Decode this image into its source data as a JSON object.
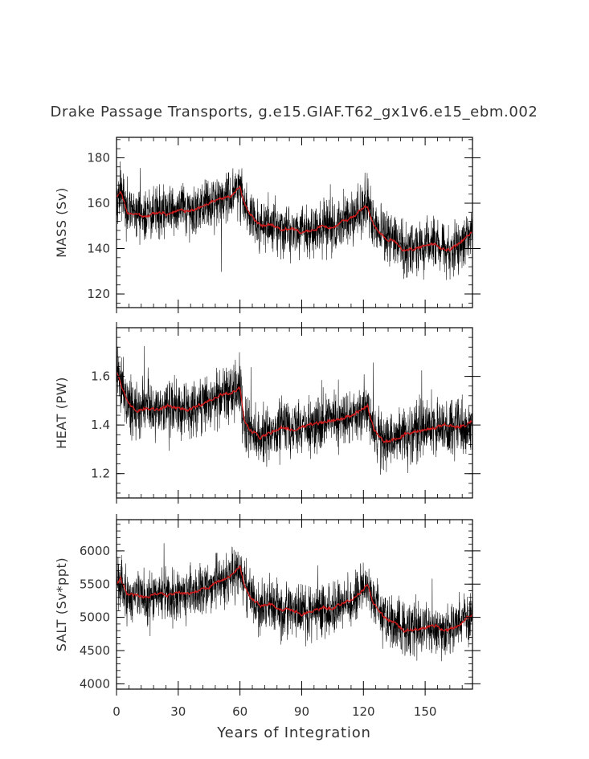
{
  "figure": {
    "title": "Drake Passage Transports, g.e15.GIAF.T62_gx1v6.e15_ebm.002",
    "xlabel": "Years of Integration",
    "x_ticks": [
      "0",
      "30",
      "60",
      "90",
      "120",
      "150"
    ],
    "colors": {
      "raw": "#000000",
      "smooth": "#d01c1c",
      "frame": "#000000"
    }
  },
  "chart_data": [
    {
      "type": "line",
      "panel": "mass",
      "ylabel": "MASS (Sv)",
      "xlim": [
        0,
        173
      ],
      "ylim": [
        114,
        189
      ],
      "y_ticks": [
        120,
        140,
        160,
        180
      ],
      "y_tick_labels": [
        "120",
        "140",
        "160",
        "180"
      ],
      "series": [
        {
          "style": "raw-monthly",
          "x": [
            0,
            2,
            5,
            10,
            15,
            20,
            25,
            30,
            35,
            40,
            45,
            50,
            55,
            58,
            60,
            62,
            65,
            70,
            75,
            80,
            85,
            90,
            95,
            100,
            105,
            110,
            115,
            120,
            122,
            125,
            130,
            135,
            140,
            145,
            150,
            155,
            160,
            165,
            170,
            173
          ],
          "y": [
            163,
            165,
            156,
            155,
            154,
            156,
            155,
            157,
            156,
            158,
            160,
            162,
            163,
            165,
            167,
            160,
            155,
            150,
            151,
            148,
            149,
            147,
            148,
            150,
            149,
            152,
            154,
            158,
            159,
            150,
            145,
            143,
            139,
            140,
            141,
            142,
            139,
            141,
            145,
            147
          ],
          "noise": 9
        },
        {
          "style": "smoothed",
          "x": [
            0,
            2,
            5,
            10,
            15,
            20,
            25,
            30,
            35,
            40,
            45,
            50,
            55,
            58,
            60,
            62,
            65,
            70,
            75,
            80,
            85,
            90,
            95,
            100,
            105,
            110,
            115,
            120,
            122,
            125,
            130,
            135,
            140,
            145,
            150,
            155,
            160,
            165,
            170,
            173
          ],
          "y": [
            163,
            165,
            156,
            155,
            154,
            156,
            155,
            157,
            156,
            158,
            160,
            162,
            163,
            165,
            167,
            160,
            155,
            150,
            151,
            148,
            149,
            147,
            148,
            150,
            149,
            152,
            154,
            158,
            159,
            150,
            145,
            143,
            139,
            140,
            141,
            142,
            139,
            141,
            145,
            147
          ],
          "noise": 1.2
        }
      ]
    },
    {
      "type": "line",
      "panel": "heat",
      "ylabel": "HEAT (PW)",
      "xlim": [
        0,
        173
      ],
      "ylim": [
        1.1,
        1.8
      ],
      "y_ticks": [
        1.2,
        1.4,
        1.6
      ],
      "y_tick_labels": [
        "1.2",
        "1.4",
        "1.6"
      ],
      "series": [
        {
          "style": "raw-monthly",
          "x": [
            0,
            1,
            3,
            6,
            10,
            15,
            20,
            25,
            30,
            35,
            40,
            45,
            50,
            55,
            58,
            60,
            62,
            65,
            70,
            75,
            80,
            85,
            90,
            95,
            100,
            105,
            110,
            115,
            120,
            122,
            125,
            130,
            135,
            140,
            145,
            150,
            155,
            160,
            165,
            170,
            173
          ],
          "y": [
            1.62,
            1.6,
            1.55,
            1.48,
            1.46,
            1.47,
            1.46,
            1.48,
            1.47,
            1.46,
            1.48,
            1.5,
            1.52,
            1.53,
            1.54,
            1.55,
            1.42,
            1.38,
            1.35,
            1.37,
            1.39,
            1.38,
            1.39,
            1.4,
            1.41,
            1.42,
            1.43,
            1.44,
            1.47,
            1.48,
            1.38,
            1.33,
            1.34,
            1.36,
            1.37,
            1.38,
            1.39,
            1.4,
            1.39,
            1.4,
            1.42
          ],
          "noise": 0.09
        },
        {
          "style": "smoothed",
          "x": [
            0,
            1,
            3,
            6,
            10,
            15,
            20,
            25,
            30,
            35,
            40,
            45,
            50,
            55,
            58,
            60,
            62,
            65,
            70,
            75,
            80,
            85,
            90,
            95,
            100,
            105,
            110,
            115,
            120,
            122,
            125,
            130,
            135,
            140,
            145,
            150,
            155,
            160,
            165,
            170,
            173
          ],
          "y": [
            1.62,
            1.6,
            1.55,
            1.48,
            1.46,
            1.47,
            1.46,
            1.48,
            1.47,
            1.46,
            1.48,
            1.5,
            1.52,
            1.53,
            1.54,
            1.55,
            1.42,
            1.38,
            1.35,
            1.37,
            1.39,
            1.38,
            1.39,
            1.4,
            1.41,
            1.42,
            1.43,
            1.44,
            1.47,
            1.48,
            1.38,
            1.33,
            1.34,
            1.36,
            1.37,
            1.38,
            1.39,
            1.4,
            1.39,
            1.4,
            1.42
          ],
          "noise": 0.012
        }
      ]
    },
    {
      "type": "line",
      "panel": "salt",
      "ylabel": "SALT (Sv*ppt)",
      "xlim": [
        0,
        173
      ],
      "ylim": [
        3920,
        6470
      ],
      "y_ticks": [
        4000,
        4500,
        5000,
        5500,
        6000
      ],
      "y_tick_labels": [
        "4000",
        "4500",
        "5000",
        "5500",
        "6000"
      ],
      "series": [
        {
          "style": "raw-monthly",
          "x": [
            0,
            2,
            5,
            10,
            15,
            20,
            25,
            30,
            35,
            40,
            45,
            50,
            55,
            58,
            60,
            62,
            65,
            70,
            75,
            80,
            85,
            90,
            95,
            100,
            105,
            110,
            115,
            120,
            122,
            125,
            130,
            135,
            140,
            145,
            150,
            155,
            160,
            165,
            170,
            173
          ],
          "y": [
            5500,
            5580,
            5340,
            5330,
            5300,
            5360,
            5330,
            5370,
            5350,
            5400,
            5450,
            5550,
            5620,
            5700,
            5780,
            5480,
            5300,
            5180,
            5200,
            5100,
            5120,
            5050,
            5080,
            5150,
            5120,
            5220,
            5280,
            5420,
            5480,
            5200,
            5000,
            4920,
            4800,
            4820,
            4850,
            4880,
            4800,
            4850,
            4980,
            5050
          ],
          "noise": 300
        },
        {
          "style": "smoothed",
          "x": [
            0,
            2,
            5,
            10,
            15,
            20,
            25,
            30,
            35,
            40,
            45,
            50,
            55,
            58,
            60,
            62,
            65,
            70,
            75,
            80,
            85,
            90,
            95,
            100,
            105,
            110,
            115,
            120,
            122,
            125,
            130,
            135,
            140,
            145,
            150,
            155,
            160,
            165,
            170,
            173
          ],
          "y": [
            5500,
            5580,
            5340,
            5330,
            5300,
            5360,
            5330,
            5370,
            5350,
            5400,
            5450,
            5550,
            5620,
            5700,
            5780,
            5480,
            5300,
            5180,
            5200,
            5100,
            5120,
            5050,
            5080,
            5150,
            5120,
            5220,
            5280,
            5420,
            5480,
            5200,
            5000,
            4920,
            4800,
            4820,
            4850,
            4880,
            4800,
            4850,
            4980,
            5050
          ],
          "noise": 40
        }
      ]
    }
  ]
}
